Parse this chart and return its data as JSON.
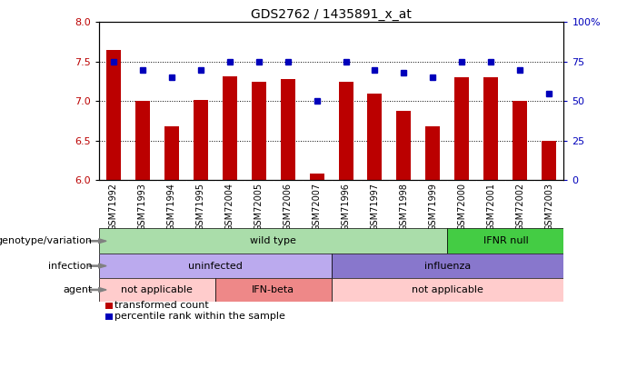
{
  "title": "GDS2762 / 1435891_x_at",
  "samples": [
    "GSM71992",
    "GSM71993",
    "GSM71994",
    "GSM71995",
    "GSM72004",
    "GSM72005",
    "GSM72006",
    "GSM72007",
    "GSM71996",
    "GSM71997",
    "GSM71998",
    "GSM71999",
    "GSM72000",
    "GSM72001",
    "GSM72002",
    "GSM72003"
  ],
  "bar_values": [
    7.65,
    7.0,
    6.68,
    7.02,
    7.32,
    7.25,
    7.28,
    6.08,
    7.25,
    7.1,
    6.88,
    6.68,
    7.3,
    7.3,
    7.0,
    6.5
  ],
  "dot_values": [
    75,
    70,
    65,
    70,
    75,
    75,
    75,
    50,
    75,
    70,
    68,
    65,
    75,
    75,
    70,
    55
  ],
  "ylim_left": [
    6.0,
    8.0
  ],
  "ylim_right": [
    0,
    100
  ],
  "yticks_left": [
    6.0,
    6.5,
    7.0,
    7.5,
    8.0
  ],
  "yticks_right": [
    0,
    25,
    50,
    75,
    100
  ],
  "ytick_labels_right": [
    "0",
    "25",
    "50",
    "75",
    "100%"
  ],
  "bar_color": "#bb0000",
  "dot_color": "#0000bb",
  "genotype_row": {
    "label": "genotype/variation",
    "segments": [
      {
        "text": "wild type",
        "start": 0,
        "end": 12,
        "color": "#aaddaa"
      },
      {
        "text": "IFNR null",
        "start": 12,
        "end": 16,
        "color": "#44cc44"
      }
    ]
  },
  "infection_row": {
    "label": "infection",
    "segments": [
      {
        "text": "uninfected",
        "start": 0,
        "end": 8,
        "color": "#bbaaee"
      },
      {
        "text": "influenza",
        "start": 8,
        "end": 16,
        "color": "#8877cc"
      }
    ]
  },
  "agent_row": {
    "label": "agent",
    "segments": [
      {
        "text": "not applicable",
        "start": 0,
        "end": 4,
        "color": "#ffcccc"
      },
      {
        "text": "IFN-beta",
        "start": 4,
        "end": 8,
        "color": "#ee8888"
      },
      {
        "text": "not applicable",
        "start": 8,
        "end": 16,
        "color": "#ffcccc"
      }
    ]
  },
  "legend_items": [
    {
      "color": "#bb0000",
      "label": "transformed count"
    },
    {
      "color": "#0000bb",
      "label": "percentile rank within the sample"
    }
  ],
  "xticklabel_bg": "#cccccc"
}
